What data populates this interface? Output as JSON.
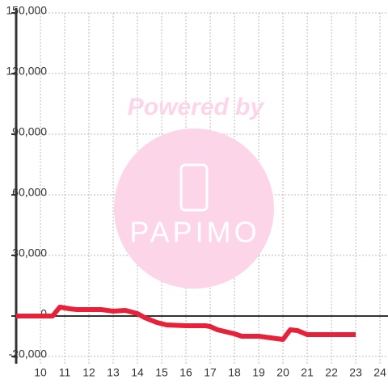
{
  "chart_data": {
    "type": "line",
    "watermark": {
      "line1": "Powered by",
      "line2": "PAPIMO"
    },
    "x": [
      9,
      10.5,
      10.8,
      11.2,
      11.5,
      12,
      12.5,
      13,
      13.5,
      14,
      14.3,
      14.8,
      15.2,
      16,
      16.8,
      17,
      17.3,
      18,
      18.3,
      19,
      19.5,
      20,
      20.3,
      20.6,
      21,
      22,
      23
    ],
    "series": [
      {
        "color": "#e8213a",
        "values": [
          0,
          0,
          4400,
          3600,
          3200,
          3200,
          3200,
          2400,
          2800,
          1200,
          -800,
          -3200,
          -4400,
          -4800,
          -4800,
          -5200,
          -6800,
          -8800,
          -10000,
          -10000,
          -10800,
          -11600,
          -6800,
          -7200,
          -9200,
          -9200,
          -9200
        ]
      }
    ],
    "xlim": [
      9,
      24.33
    ],
    "xticks": [
      10,
      11,
      12,
      13,
      14,
      15,
      16,
      17,
      18,
      19,
      20,
      21,
      22,
      23,
      24
    ],
    "ylim": [
      -20000,
      150000
    ],
    "yticks": [
      {
        "value": -20000,
        "label": "-20,000"
      },
      0,
      {
        "value": 30000,
        "label": "30,000"
      },
      {
        "value": 60000,
        "label": "60,000"
      },
      {
        "value": 90000,
        "label": "90,000"
      },
      {
        "value": 120000,
        "label": "120,000"
      },
      {
        "value": 150000,
        "label": "150,000"
      }
    ],
    "grid": true
  }
}
